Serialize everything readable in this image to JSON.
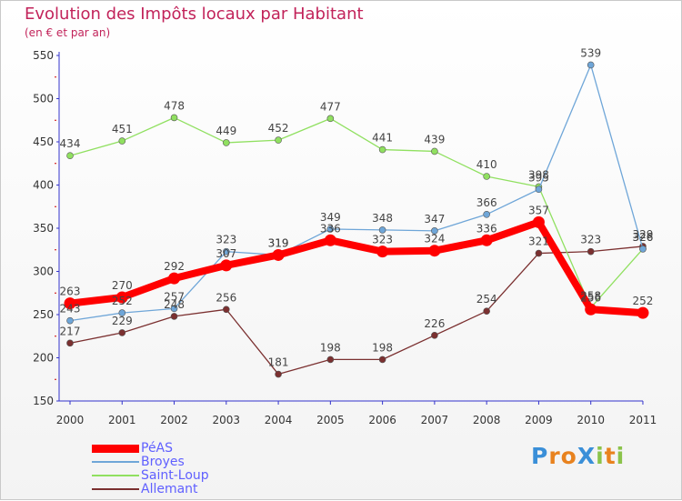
{
  "header": {
    "title": "Evolution des Impôts locaux par Habitant",
    "subtitle": "(en € et par an)"
  },
  "logo": {
    "text": "ProXiti",
    "letters": [
      "P",
      "r",
      "o",
      "X",
      "i",
      "t",
      "i"
    ]
  },
  "chart_data": {
    "type": "line",
    "title": "Evolution des Impôts locaux par Habitant",
    "subtitle": "(en € et par an)",
    "xlabel": "",
    "ylabel": "",
    "categories": [
      "2000",
      "2001",
      "2002",
      "2003",
      "2004",
      "2005",
      "2006",
      "2007",
      "2008",
      "2009",
      "2010",
      "2011"
    ],
    "ylim": [
      150,
      550
    ],
    "yticks": [
      150,
      200,
      250,
      300,
      350,
      400,
      450,
      500,
      550
    ],
    "grid": false,
    "legend_position": "bottom-left",
    "series": [
      {
        "name": "PéAS",
        "color": "#ff0000",
        "values": [
          263,
          270,
          292,
          307,
          319,
          336,
          323,
          324,
          336,
          357,
          256,
          252
        ],
        "labels": [
          "263",
          "270",
          "292",
          "307",
          "319",
          "336",
          "323",
          "324",
          "336",
          "357",
          "256",
          "252"
        ]
      },
      {
        "name": "Broyes",
        "color": "#6fa6d8",
        "values": [
          243,
          252,
          257,
          323,
          319,
          349,
          348,
          347,
          366,
          395,
          539,
          326
        ],
        "labels": [
          "243",
          "252",
          "257",
          "323",
          "319",
          "349",
          "348",
          "347",
          "366",
          "395",
          "539",
          "326"
        ]
      },
      {
        "name": "Saint-Loup",
        "color": "#90e060",
        "values": [
          434,
          451,
          478,
          449,
          452,
          477,
          441,
          439,
          410,
          398,
          258,
          326
        ],
        "labels": [
          "434",
          "451",
          "478",
          "449",
          "452",
          "477",
          "441",
          "439",
          "410",
          "398",
          "258",
          "326"
        ]
      },
      {
        "name": "Allemant",
        "color": "#7b3030",
        "values": [
          217,
          229,
          248,
          256,
          181,
          198,
          198,
          226,
          254,
          321,
          323,
          329
        ],
        "labels": [
          "217",
          "229",
          "248",
          "256",
          "181",
          "198",
          "198",
          "226",
          "254",
          "321",
          "323",
          "329"
        ]
      }
    ]
  }
}
